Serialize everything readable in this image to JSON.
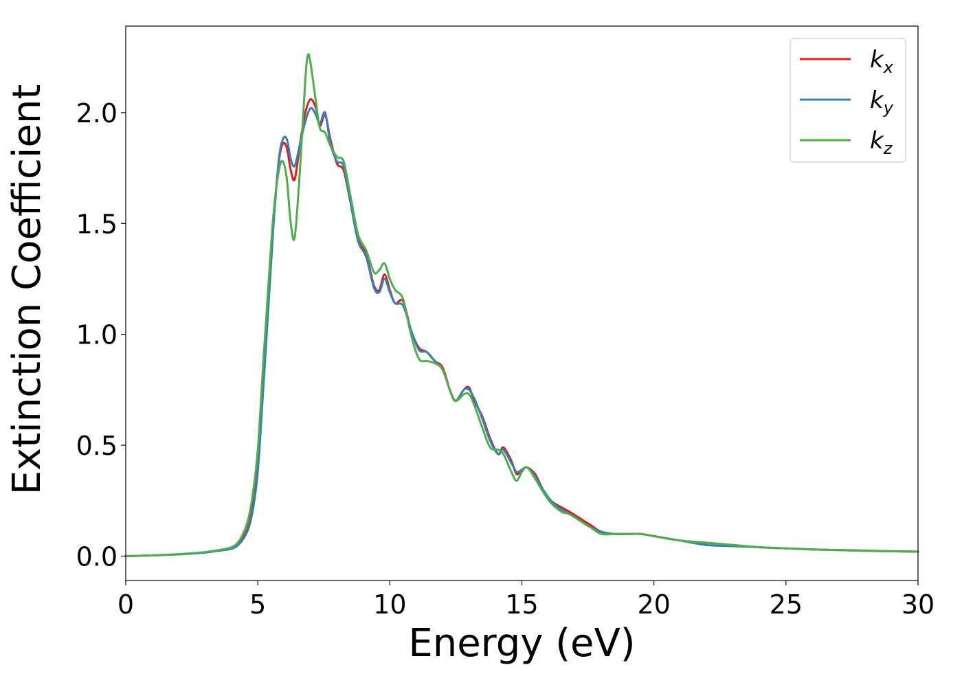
{
  "chart_data": {
    "type": "line",
    "title": "",
    "xlabel": "Energy (eV)",
    "ylabel": "Extinction Coefficient",
    "xlim": [
      0,
      30
    ],
    "ylim": [
      -0.11,
      2.39
    ],
    "xticks": [
      0,
      5,
      10,
      15,
      20,
      25,
      30
    ],
    "xtick_labels": [
      "0",
      "5",
      "10",
      "15",
      "20",
      "25",
      "30"
    ],
    "yticks": [
      0.0,
      0.5,
      1.0,
      1.5,
      2.0
    ],
    "ytick_labels": [
      "0.0",
      "0.5",
      "1.0",
      "1.5",
      "2.0"
    ],
    "grid": false,
    "legend_position": "top-right",
    "series": [
      {
        "name": "k_x",
        "label_base": "k",
        "label_sub": "x",
        "color": "#e41a1c",
        "x": [
          0,
          1,
          2,
          3,
          3.5,
          4,
          4.3,
          4.6,
          4.8,
          5.0,
          5.2,
          5.4,
          5.6,
          5.8,
          5.95,
          6.1,
          6.25,
          6.4,
          6.6,
          6.8,
          7.0,
          7.2,
          7.35,
          7.55,
          7.75,
          8.0,
          8.25,
          8.5,
          8.8,
          9.1,
          9.4,
          9.6,
          9.8,
          10.0,
          10.2,
          10.5,
          10.8,
          11.1,
          11.4,
          11.7,
          12.0,
          12.3,
          12.5,
          12.8,
          13.0,
          13.2,
          13.5,
          13.8,
          14.1,
          14.3,
          14.6,
          14.8,
          15.0,
          15.2,
          15.5,
          15.8,
          16.1,
          16.5,
          16.8,
          17.2,
          17.6,
          18.0,
          18.5,
          19.0,
          19.5,
          20.0,
          21.0,
          22.0,
          23.0,
          24.0,
          25.0,
          26.0,
          27.0,
          28.0,
          29.0,
          30.0
        ],
        "values": [
          0.0,
          0.003,
          0.008,
          0.017,
          0.025,
          0.035,
          0.06,
          0.12,
          0.22,
          0.42,
          0.78,
          1.15,
          1.52,
          1.78,
          1.86,
          1.84,
          1.74,
          1.7,
          1.86,
          2.0,
          2.06,
          2.02,
          1.94,
          1.99,
          1.88,
          1.77,
          1.74,
          1.6,
          1.43,
          1.36,
          1.22,
          1.2,
          1.27,
          1.2,
          1.14,
          1.15,
          1.02,
          0.94,
          0.92,
          0.88,
          0.85,
          0.74,
          0.7,
          0.75,
          0.76,
          0.7,
          0.63,
          0.53,
          0.46,
          0.49,
          0.43,
          0.37,
          0.39,
          0.4,
          0.37,
          0.3,
          0.25,
          0.22,
          0.2,
          0.17,
          0.14,
          0.11,
          0.1,
          0.1,
          0.1,
          0.09,
          0.07,
          0.06,
          0.05,
          0.04,
          0.035,
          0.03,
          0.028,
          0.025,
          0.022,
          0.02
        ]
      },
      {
        "name": "k_y",
        "label_base": "k",
        "label_sub": "y",
        "color": "#377eb8",
        "x": [
          0,
          1,
          2,
          3,
          3.5,
          4,
          4.3,
          4.6,
          4.8,
          5.0,
          5.2,
          5.4,
          5.6,
          5.8,
          5.95,
          6.1,
          6.25,
          6.4,
          6.6,
          6.8,
          7.0,
          7.2,
          7.35,
          7.55,
          7.75,
          8.0,
          8.25,
          8.5,
          8.8,
          9.1,
          9.4,
          9.6,
          9.8,
          10.0,
          10.2,
          10.5,
          10.8,
          11.1,
          11.4,
          11.7,
          12.0,
          12.3,
          12.5,
          12.8,
          13.0,
          13.2,
          13.5,
          13.8,
          14.1,
          14.3,
          14.6,
          14.8,
          15.0,
          15.2,
          15.5,
          15.8,
          16.1,
          16.5,
          16.8,
          17.2,
          17.6,
          18.0,
          18.5,
          19.0,
          19.5,
          20.0,
          21.0,
          22.0,
          23.0,
          24.0,
          25.0,
          26.0,
          27.0,
          28.0,
          29.0,
          30.0
        ],
        "values": [
          0.0,
          0.003,
          0.008,
          0.016,
          0.024,
          0.033,
          0.055,
          0.11,
          0.2,
          0.38,
          0.74,
          1.12,
          1.5,
          1.79,
          1.88,
          1.88,
          1.79,
          1.76,
          1.86,
          1.96,
          2.02,
          1.99,
          1.95,
          2.0,
          1.86,
          1.78,
          1.76,
          1.6,
          1.42,
          1.35,
          1.21,
          1.19,
          1.25,
          1.19,
          1.14,
          1.13,
          1.02,
          0.93,
          0.92,
          0.88,
          0.84,
          0.74,
          0.7,
          0.75,
          0.75,
          0.71,
          0.62,
          0.52,
          0.46,
          0.48,
          0.42,
          0.38,
          0.39,
          0.4,
          0.36,
          0.3,
          0.25,
          0.21,
          0.19,
          0.16,
          0.13,
          0.11,
          0.1,
          0.1,
          0.1,
          0.09,
          0.07,
          0.05,
          0.045,
          0.04,
          0.035,
          0.03,
          0.027,
          0.024,
          0.022,
          0.02
        ]
      },
      {
        "name": "k_z",
        "label_base": "k",
        "label_sub": "z",
        "color": "#4daf4a",
        "x": [
          0,
          1,
          2,
          3,
          3.5,
          4,
          4.3,
          4.6,
          4.8,
          5.0,
          5.2,
          5.4,
          5.6,
          5.8,
          5.95,
          6.1,
          6.25,
          6.4,
          6.6,
          6.8,
          6.9,
          7.0,
          7.2,
          7.35,
          7.55,
          7.75,
          8.0,
          8.25,
          8.5,
          8.8,
          9.1,
          9.4,
          9.6,
          9.8,
          10.0,
          10.2,
          10.5,
          10.8,
          11.1,
          11.4,
          11.7,
          12.0,
          12.3,
          12.5,
          12.8,
          13.0,
          13.2,
          13.5,
          13.8,
          14.1,
          14.3,
          14.6,
          14.8,
          15.0,
          15.2,
          15.5,
          15.8,
          16.1,
          16.5,
          16.8,
          17.2,
          17.6,
          18.0,
          18.5,
          19.0,
          19.5,
          20.0,
          21.0,
          22.0,
          23.0,
          24.0,
          25.0,
          26.0,
          27.0,
          28.0,
          29.0,
          30.0
        ],
        "values": [
          0.0,
          0.003,
          0.009,
          0.018,
          0.027,
          0.04,
          0.07,
          0.15,
          0.27,
          0.48,
          0.86,
          1.22,
          1.55,
          1.74,
          1.78,
          1.7,
          1.5,
          1.44,
          1.75,
          2.15,
          2.26,
          2.22,
          2.05,
          1.93,
          1.91,
          1.85,
          1.8,
          1.78,
          1.63,
          1.45,
          1.38,
          1.28,
          1.29,
          1.32,
          1.25,
          1.2,
          1.16,
          1.0,
          0.89,
          0.88,
          0.87,
          0.84,
          0.74,
          0.7,
          0.73,
          0.73,
          0.68,
          0.58,
          0.49,
          0.48,
          0.46,
          0.38,
          0.34,
          0.38,
          0.4,
          0.35,
          0.29,
          0.24,
          0.2,
          0.19,
          0.16,
          0.13,
          0.1,
          0.1,
          0.1,
          0.1,
          0.09,
          0.07,
          0.06,
          0.05,
          0.04,
          0.035,
          0.03,
          0.027,
          0.024,
          0.022,
          0.02
        ]
      }
    ]
  }
}
